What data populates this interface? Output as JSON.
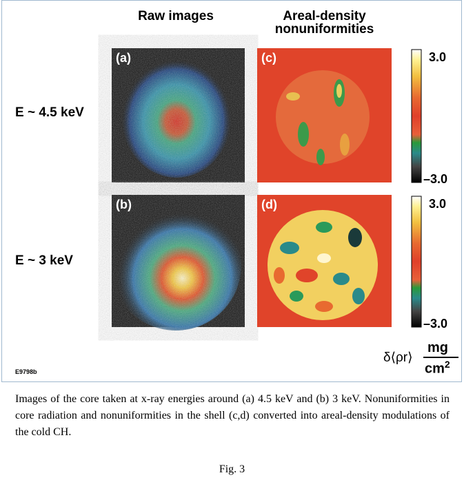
{
  "figure": {
    "headers": [
      "Raw images",
      "Areal-density nonuniformities"
    ],
    "rows": [
      {
        "label": "E ~ 4.5 keV",
        "panels": [
          "(a)",
          "(c)"
        ]
      },
      {
        "label": "E ~ 3 keV",
        "panels": [
          "(b)",
          "(d)"
        ]
      }
    ],
    "colorbars": [
      {
        "max": "3.0",
        "min": "–3.0"
      },
      {
        "max": "3.0",
        "min": "–3.0"
      }
    ],
    "unit": {
      "symbol": "δ⟨ρr⟩",
      "numerator": "mg",
      "denominator": "cm",
      "exponent": "2"
    },
    "code": "E9798b"
  },
  "caption": "Images of the core taken at x-ray energies around (a) 4.5 keV and (b) 3 keV. Nonuniformities in core radiation and nonuniformities in the shell (c,d) converted into areal-density modulations of the cold CH.",
  "figure_label": "Fig. 3"
}
